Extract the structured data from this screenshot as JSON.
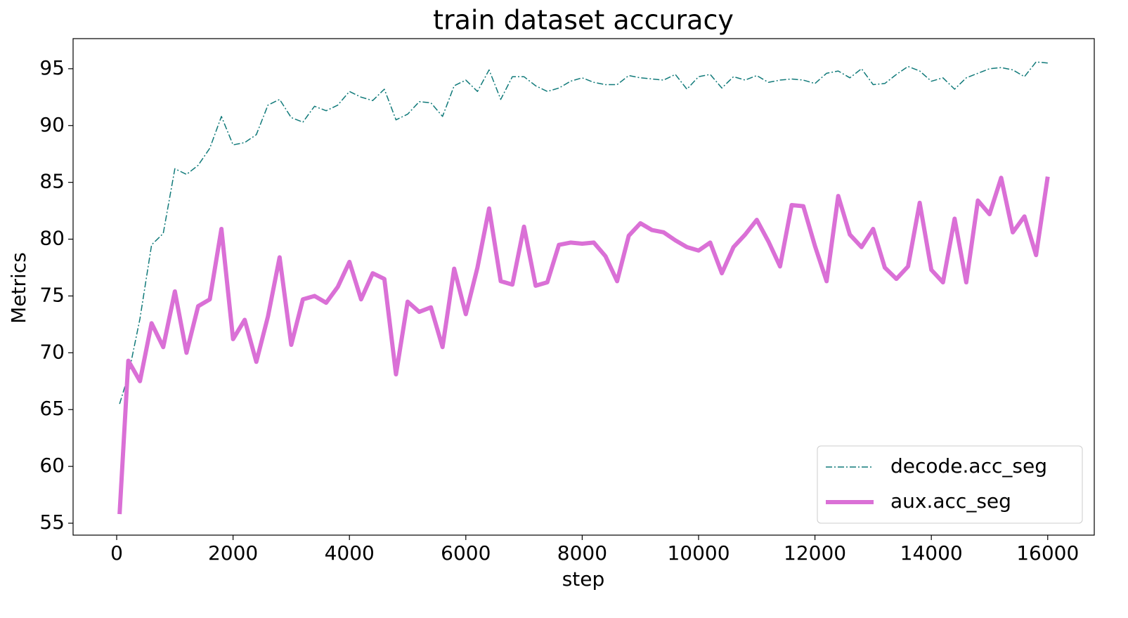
{
  "chart_data": {
    "type": "line",
    "title": "train dataset accuracy",
    "x_label": "step",
    "y_label": "Metrics",
    "x": [
      50,
      200,
      400,
      600,
      800,
      1000,
      1200,
      1400,
      1600,
      1800,
      2000,
      2200,
      2400,
      2600,
      2800,
      3000,
      3200,
      3400,
      3600,
      3800,
      4000,
      4200,
      4400,
      4600,
      4800,
      5000,
      5200,
      5400,
      5600,
      5800,
      6000,
      6200,
      6400,
      6600,
      6800,
      7000,
      7200,
      7400,
      7600,
      7800,
      8000,
      8200,
      8400,
      8600,
      8800,
      9000,
      9200,
      9400,
      9600,
      9800,
      10000,
      10200,
      10400,
      10600,
      10800,
      11000,
      11200,
      11400,
      11600,
      11800,
      12000,
      12200,
      12400,
      12600,
      12800,
      13000,
      13200,
      13400,
      13600,
      13800,
      14000,
      14200,
      14400,
      14600,
      14800,
      15000,
      15200,
      15400,
      15600,
      15800,
      16000
    ],
    "series": [
      {
        "name": "decode.acc_seg",
        "color": "#117a7a",
        "style": "dashdot",
        "width": 1.5,
        "values": [
          65.5,
          68.0,
          73,
          79.5,
          80.5,
          86.2,
          85.7,
          86.5,
          88.0,
          90.8,
          88.3,
          88.5,
          89.2,
          91.8,
          92.3,
          90.7,
          90.3,
          91.7,
          91.3,
          91.8,
          93.0,
          92.5,
          92.2,
          93.2,
          90.5,
          91.0,
          92.1,
          92.0,
          90.8,
          93.5,
          94.0,
          93.0,
          94.9,
          92.3,
          94.3,
          94.3,
          93.5,
          93.0,
          93.3,
          93.9,
          94.2,
          93.8,
          93.6,
          93.6,
          94.4,
          94.2,
          94.1,
          94.0,
          94.5,
          93.2,
          94.3,
          94.5,
          93.3,
          94.3,
          94.0,
          94.4,
          93.8,
          94.0,
          94.1,
          94.0,
          93.7,
          94.6,
          94.8,
          94.2,
          95.0,
          93.6,
          93.7,
          94.5,
          95.2,
          94.8,
          93.9,
          94.2,
          93.2,
          94.2,
          94.6,
          95.0,
          95.1,
          94.9,
          94.3,
          95.6,
          95.5
        ]
      },
      {
        "name": "aux.acc_seg",
        "color": "#da70d6",
        "style": "solid",
        "width": 6,
        "values": [
          55.8,
          69.3,
          67.5,
          72.6,
          70.5,
          75.4,
          70.0,
          74.1,
          74.7,
          80.9,
          71.2,
          72.9,
          69.2,
          73.2,
          78.4,
          70.7,
          74.7,
          75.0,
          74.4,
          75.8,
          78.0,
          74.7,
          77.0,
          76.5,
          68.1,
          74.5,
          73.6,
          74.0,
          70.5,
          77.4,
          73.4,
          77.5,
          82.7,
          76.3,
          76.0,
          81.1,
          75.9,
          76.2,
          79.5,
          79.7,
          79.6,
          79.7,
          78.5,
          76.3,
          80.3,
          81.4,
          80.8,
          80.6,
          79.9,
          79.3,
          79.0,
          79.7,
          77.0,
          79.3,
          80.4,
          81.7,
          79.8,
          77.6,
          83.0,
          82.9,
          79.4,
          76.3,
          83.8,
          80.4,
          79.3,
          80.9,
          77.5,
          76.5,
          77.6,
          83.2,
          77.3,
          76.2,
          81.8,
          76.2,
          83.4,
          82.2,
          85.4,
          80.6,
          82.0,
          78.6,
          85.5
        ]
      }
    ],
    "xlim": [
      -749,
      16800
    ],
    "ylim": [
      53.95,
      97.65
    ],
    "xticks": [
      0,
      2000,
      4000,
      6000,
      8000,
      10000,
      12000,
      14000,
      16000
    ],
    "yticks": [
      55,
      60,
      65,
      70,
      75,
      80,
      85,
      90,
      95
    ],
    "legend": "lower right",
    "grid": false
  }
}
